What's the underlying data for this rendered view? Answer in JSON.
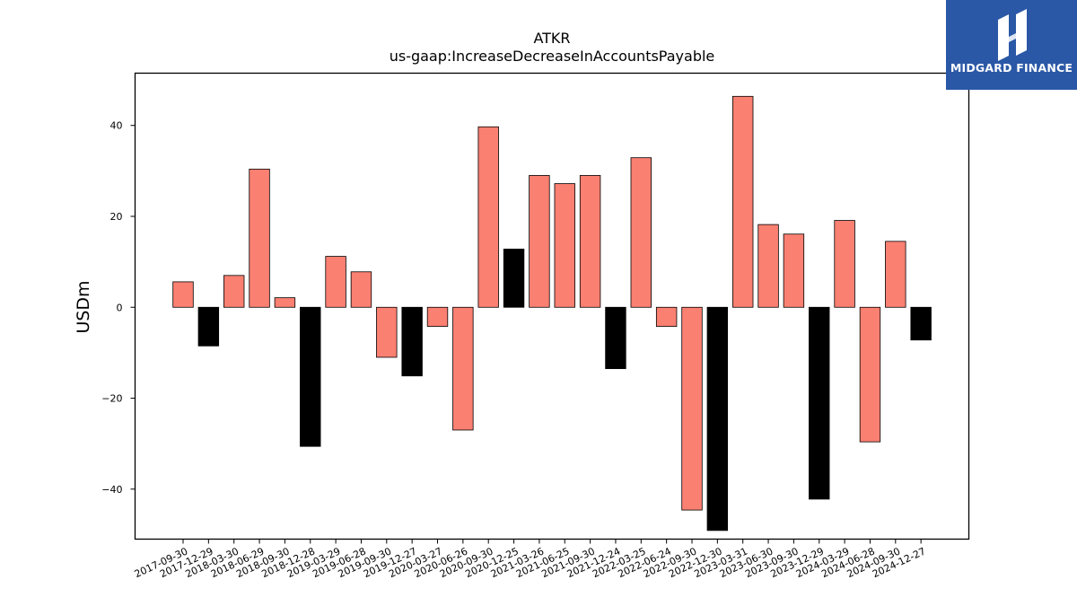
{
  "logo": {
    "name": "MIDGARD FINANCE",
    "bg_color": "#2b58a6"
  },
  "chart_data": {
    "type": "bar",
    "title": "ATKR",
    "subtitle": "us-gaap:IncreaseDecreaseInAccountsPayable",
    "xlabel": "",
    "ylabel": "USDm",
    "ylim": [
      -51,
      51.5
    ],
    "yticks": [
      -40,
      -20,
      0,
      20,
      40
    ],
    "ytick_labels": [
      "−40",
      "−20",
      "0",
      "20",
      "40"
    ],
    "grid": false,
    "legend": "none",
    "colors": {
      "default": "#fa8072",
      "q4": "#000000",
      "edge": "#000000"
    },
    "categories": [
      "2017-09-30",
      "2017-12-29",
      "2018-03-30",
      "2018-06-29",
      "2018-09-30",
      "2018-12-28",
      "2019-03-29",
      "2019-06-28",
      "2019-09-30",
      "2019-12-27",
      "2020-03-27",
      "2020-06-26",
      "2020-09-30",
      "2020-12-25",
      "2021-03-26",
      "2021-06-25",
      "2021-09-30",
      "2021-12-24",
      "2022-03-25",
      "2022-06-24",
      "2022-09-30",
      "2022-12-30",
      "2023-03-31",
      "2023-06-30",
      "2023-09-30",
      "2023-12-29",
      "2024-03-29",
      "2024-06-28",
      "2024-09-30",
      "2024-12-27"
    ],
    "values": [
      5.6,
      -8.5,
      7.0,
      30.4,
      2.1,
      -30.6,
      11.2,
      7.8,
      -11.0,
      -15.1,
      -4.2,
      -27.0,
      39.7,
      12.8,
      29.0,
      27.2,
      29.0,
      -13.5,
      32.9,
      -4.2,
      -44.6,
      -49.1,
      46.4,
      18.2,
      16.1,
      -42.2,
      19.1,
      -29.6,
      14.5,
      -7.2
    ],
    "highlight": [
      false,
      true,
      false,
      false,
      false,
      true,
      false,
      false,
      false,
      true,
      false,
      false,
      false,
      true,
      false,
      false,
      false,
      true,
      false,
      false,
      false,
      true,
      false,
      false,
      false,
      true,
      false,
      false,
      false,
      true
    ]
  }
}
